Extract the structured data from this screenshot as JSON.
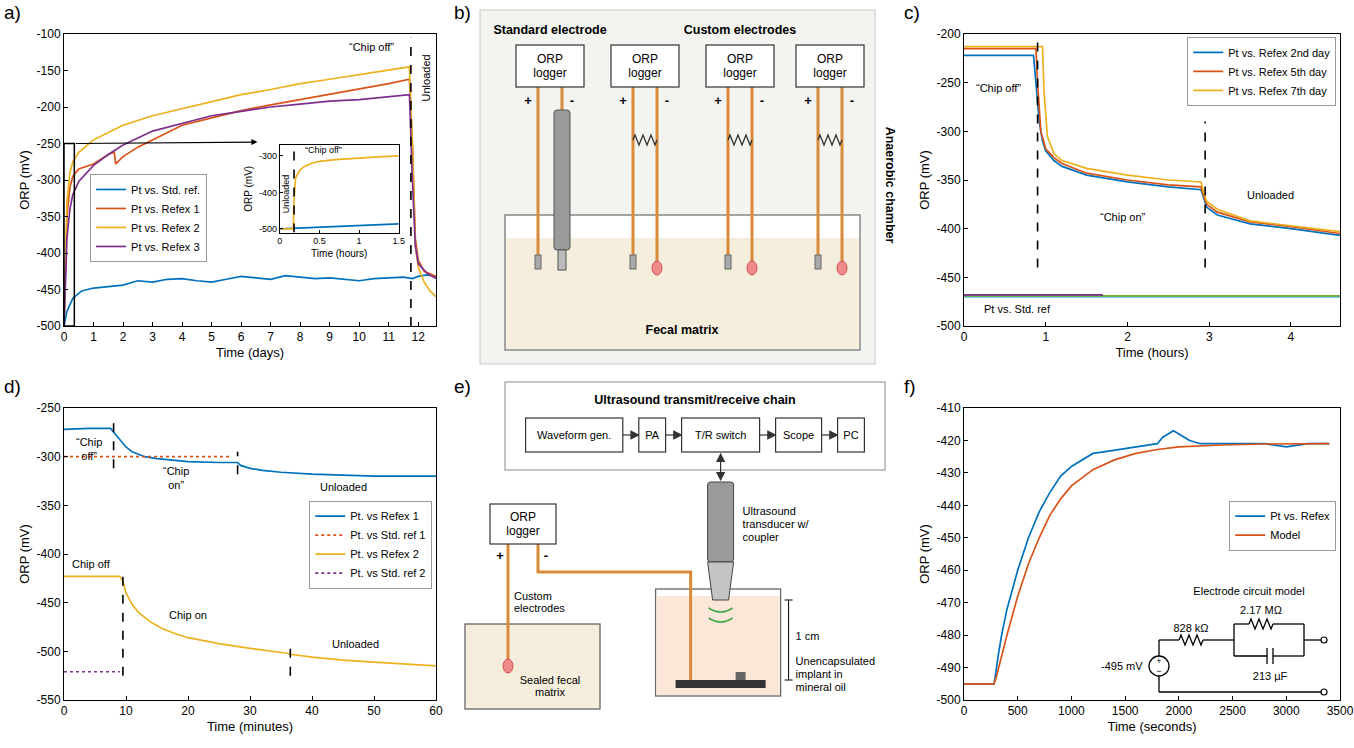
{
  "chart_data": [
    {
      "panel_label": "a)",
      "type": "line",
      "x_label": "Time (days)",
      "y_label": "ORP (mV)",
      "xlim": [
        0,
        12.6
      ],
      "xticks": [
        0,
        1,
        2,
        3,
        4,
        5,
        6,
        7,
        8,
        9,
        10,
        11,
        12
      ],
      "ylim": [
        -500,
        -100
      ],
      "yticks": [
        -500,
        -450,
        -400,
        -350,
        -300,
        -250,
        -200,
        -150,
        -100
      ],
      "grid": false,
      "legend": "left",
      "series": [
        {
          "name": "Pt vs. Std. ref.",
          "color": "#0072BD",
          "x": [
            0,
            0.1,
            0.3,
            0.6,
            1,
            1.5,
            2,
            2.5,
            3,
            3.5,
            4,
            4.5,
            5,
            5.5,
            6,
            6.5,
            7,
            7.5,
            8,
            8.5,
            9,
            9.5,
            10,
            10.5,
            11,
            11.5,
            11.8,
            12,
            12.3,
            12.6
          ],
          "values": [
            -500,
            -480,
            -462,
            -452,
            -448,
            -446,
            -444,
            -438,
            -440,
            -436,
            -435,
            -438,
            -440,
            -436,
            -432,
            -434,
            -436,
            -431,
            -433,
            -435,
            -434,
            -436,
            -438,
            -435,
            -434,
            -433,
            -435,
            -432,
            -430,
            -432
          ]
        },
        {
          "name": "Pt vs. Refex 1",
          "color": "#D95319",
          "x": [
            0,
            0.05,
            0.1,
            0.2,
            0.3,
            0.5,
            1,
            1.5,
            1.7,
            1.75,
            2,
            2.5,
            3,
            3.5,
            4,
            5,
            6,
            7,
            8,
            9,
            10,
            11,
            11.7,
            11.8,
            11.9,
            12,
            12.2,
            12.6
          ],
          "values": [
            -500,
            -420,
            -350,
            -310,
            -295,
            -285,
            -278,
            -265,
            -262,
            -278,
            -268,
            -255,
            -245,
            -235,
            -225,
            -215,
            -205,
            -197,
            -190,
            -182,
            -176,
            -168,
            -162,
            -250,
            -380,
            -410,
            -425,
            -432
          ]
        },
        {
          "name": "Pt vs. Refex 2",
          "color": "#EDB120",
          "x": [
            0,
            0.05,
            0.1,
            0.2,
            0.3,
            0.5,
            1,
            1.5,
            2,
            3,
            4,
            5,
            6,
            7,
            8,
            9,
            10,
            11,
            11.7,
            11.8,
            11.9,
            12,
            12.2,
            12.4,
            12.6
          ],
          "values": [
            -500,
            -400,
            -330,
            -290,
            -275,
            -262,
            -245,
            -235,
            -225,
            -212,
            -202,
            -192,
            -183,
            -176,
            -168,
            -162,
            -156,
            -150,
            -145,
            -250,
            -390,
            -420,
            -440,
            -452,
            -460
          ]
        },
        {
          "name": "Pt vs. Refex 3",
          "color": "#7E2F8E",
          "x": [
            0,
            0.05,
            0.1,
            0.2,
            0.3,
            0.5,
            1,
            1.5,
            2,
            3,
            4,
            5,
            6,
            7,
            8,
            9,
            10,
            11,
            11.7,
            11.8,
            11.9,
            12,
            12.3,
            12.6
          ],
          "values": [
            -500,
            -440,
            -380,
            -340,
            -320,
            -302,
            -280,
            -265,
            -252,
            -233,
            -222,
            -212,
            -206,
            -200,
            -196,
            -192,
            -190,
            -186,
            -183,
            -300,
            -390,
            -415,
            -428,
            -435
          ]
        }
      ],
      "annotations": [
        {
          "text": "“Chip off”",
          "x": 10.4,
          "y": -118
        },
        {
          "text": "Unloaded",
          "x": 12.25,
          "y": -160
        }
      ],
      "vlines": [
        {
          "x": 11.75,
          "y": [
            -500,
            -105
          ]
        }
      ],
      "zoom_box": {
        "x": [
          0,
          0.35
        ],
        "y": [
          -500,
          -250
        ]
      },
      "inset": {
        "type": "line",
        "x_label": "Time (hours)",
        "y_label": "ORP (mV)",
        "xlim": [
          0,
          1.5
        ],
        "xticks": [
          0,
          0.5,
          1,
          1.5
        ],
        "ylim": [
          -510,
          -270
        ],
        "yticks": [
          -500,
          -400,
          -300
        ],
        "series": [
          {
            "name": "Pt vs. Std. ref.",
            "color": "#0072BD",
            "x": [
              0,
              0.2,
              0.4,
              0.6,
              0.8,
              1,
              1.2,
              1.4,
              1.5
            ],
            "values": [
              -500,
              -498,
              -497,
              -495,
              -493,
              -491,
              -489,
              -487,
              -486
            ]
          },
          {
            "name": "Pt vs. Refex 2",
            "color": "#EDB120",
            "x": [
              0,
              0.17,
              0.18,
              0.2,
              0.25,
              0.3,
              0.4,
              0.5,
              0.7,
              1,
              1.3,
              1.5
            ],
            "values": [
              -500,
              -500,
              -420,
              -360,
              -340,
              -330,
              -320,
              -315,
              -310,
              -305,
              -302,
              -300
            ]
          }
        ],
        "annotations": [
          {
            "text": "“Chip off”",
            "x": 0.55,
            "y": -285
          },
          {
            "text": "Unloaded",
            "x": 0.08,
            "y": -405
          }
        ],
        "vlines": [
          {
            "x": 0.18,
            "y": [
              -510,
              -270
            ]
          }
        ]
      }
    },
    {
      "panel_label": "c)",
      "type": "line",
      "x_label": "Time (hours)",
      "y_label": "ORP (mV)",
      "xlim": [
        0,
        4.6
      ],
      "xticks": [
        0,
        1,
        2,
        3,
        4
      ],
      "ylim": [
        -500,
        -200
      ],
      "yticks": [
        -500,
        -450,
        -400,
        -350,
        -300,
        -250,
        -200
      ],
      "grid": false,
      "legend": "upper right",
      "series": [
        {
          "name": "Pt vs. Refex 2nd day",
          "color": "#0072BD",
          "x": [
            0,
            0.5,
            0.85,
            0.88,
            0.92,
            0.96,
            1.0,
            1.1,
            1.2,
            1.5,
            2,
            2.5,
            2.9,
            2.93,
            2.97,
            3.1,
            3.5,
            4,
            4.6
          ],
          "values": [
            -222,
            -222,
            -222,
            -250,
            -290,
            -310,
            -320,
            -330,
            -336,
            -345,
            -352,
            -357,
            -360,
            -368,
            -378,
            -386,
            -395,
            -400,
            -407
          ]
        },
        {
          "name": "Pt vs. Refex 5th day",
          "color": "#D95319",
          "x": [
            0,
            0.5,
            0.88,
            0.9,
            0.94,
            1.0,
            1.1,
            1.2,
            1.5,
            2,
            2.5,
            2.9,
            2.93,
            2.97,
            3.1,
            3.5,
            4,
            4.6
          ],
          "values": [
            -215,
            -215,
            -215,
            -250,
            -300,
            -318,
            -327,
            -333,
            -343,
            -350,
            -355,
            -357,
            -366,
            -375,
            -383,
            -393,
            -398,
            -405
          ]
        },
        {
          "name": "Pt vs. Refex 7th day",
          "color": "#EDB120",
          "x": [
            0,
            0.5,
            0.96,
            0.98,
            1.02,
            1.1,
            1.2,
            1.5,
            2,
            2.5,
            2.9,
            2.93,
            2.97,
            3.1,
            3.5,
            4,
            4.6
          ],
          "values": [
            -213,
            -213,
            -213,
            -260,
            -305,
            -323,
            -330,
            -338,
            -345,
            -350,
            -352,
            -362,
            -372,
            -380,
            -392,
            -397,
            -403
          ]
        },
        {
          "color": "#4DBEEE",
          "x": [
            0,
            4.6
          ],
          "values": [
            -470,
            -470
          ]
        },
        {
          "color": "#77AC30",
          "x": [
            0,
            4.6
          ],
          "values": [
            -469,
            -469
          ]
        },
        {
          "color": "#7E2F8E",
          "x": [
            0,
            1.7
          ],
          "values": [
            -468,
            -468
          ]
        }
      ],
      "annotations": [
        {
          "text": "“Chip off”",
          "x": 0.42,
          "y": -255
        },
        {
          "text": "“Chip on”",
          "x": 1.95,
          "y": -388
        },
        {
          "text": "Unloaded",
          "x": 3.75,
          "y": -365
        },
        {
          "text": "Pt vs. Std. ref",
          "x": 0.65,
          "y": -483
        }
      ],
      "vlines": [
        {
          "x": 0.9,
          "y": [
            -440,
            -205
          ]
        },
        {
          "x": 2.95,
          "y": [
            -440,
            -290
          ]
        }
      ]
    },
    {
      "panel_label": "d)",
      "type": "line",
      "x_label": "Time (minutes)",
      "y_label": "ORP (mV)",
      "xlim": [
        0,
        60
      ],
      "xticks": [
        0,
        10,
        20,
        30,
        40,
        50,
        60
      ],
      "ylim": [
        -550,
        -250
      ],
      "yticks": [
        -550,
        -500,
        -450,
        -400,
        -350,
        -300,
        -250
      ],
      "grid": false,
      "legend": "right",
      "series": [
        {
          "name": "Pt. vs Refex 1",
          "color": "#0072BD",
          "line_style": "solid",
          "x": [
            0,
            4,
            7.5,
            8,
            9,
            10,
            11,
            13,
            15,
            17,
            20,
            25,
            28,
            28.5,
            30,
            32,
            35,
            40,
            45,
            50,
            55,
            60
          ],
          "values": [
            -272,
            -271,
            -271,
            -275,
            -283,
            -290,
            -295,
            -300,
            -302,
            -303,
            -305,
            -306,
            -306,
            -309,
            -312,
            -314,
            -316,
            -318,
            -319,
            -320,
            -320,
            -320
          ]
        },
        {
          "name": "Pt. vs Std. ref 1",
          "color": "#D95319",
          "line_style": "dotted",
          "x": [
            0,
            27
          ],
          "values": [
            -300,
            -300
          ]
        },
        {
          "name": "Pt. vs Refex 2",
          "color": "#EDB120",
          "line_style": "solid",
          "x": [
            0,
            9,
            9.5,
            10,
            11,
            12,
            14,
            16,
            18,
            20,
            25,
            30,
            36,
            36.5,
            40,
            45,
            50,
            55,
            60
          ],
          "values": [
            -423,
            -423,
            -428,
            -440,
            -452,
            -460,
            -470,
            -477,
            -482,
            -486,
            -492,
            -497,
            -502,
            -503,
            -506,
            -509,
            -511,
            -513,
            -515
          ]
        },
        {
          "name": "Pt. vs Std. ref 2",
          "color": "#7E2F8E",
          "line_style": "dotted",
          "x": [
            0,
            9
          ],
          "values": [
            -521,
            -521
          ]
        }
      ],
      "annotations": [
        {
          "text": "“Chip off”",
          "x": 4,
          "y": -292
        },
        {
          "text": "“Chip on”",
          "x": 18,
          "y": -322
        },
        {
          "text": "Unloaded",
          "x": 45,
          "y": -331
        },
        {
          "text": "Chip off",
          "x": 4.5,
          "y": -410
        },
        {
          "text": "Chip on",
          "x": 20,
          "y": -463
        },
        {
          "text": "Unloaded",
          "x": 47,
          "y": -492
        }
      ],
      "vlines": [
        {
          "x": 8,
          "y": [
            -312,
            -265
          ]
        },
        {
          "x": 28,
          "y": [
            -318,
            -295
          ]
        },
        {
          "x": 9.5,
          "y": [
            -525,
            -415
          ]
        },
        {
          "x": 36.5,
          "y": [
            -525,
            -490
          ]
        }
      ]
    },
    {
      "panel_label": "f)",
      "type": "line",
      "x_label": "Time (seconds)",
      "y_label": "ORP (mV)",
      "xlim": [
        0,
        3500
      ],
      "xticks": [
        0,
        500,
        1000,
        1500,
        2000,
        2500,
        3000,
        3500
      ],
      "ylim": [
        -500,
        -410
      ],
      "yticks": [
        -500,
        -490,
        -480,
        -470,
        -460,
        -450,
        -440,
        -430,
        -420,
        -410
      ],
      "grid": false,
      "legend": "right",
      "series": [
        {
          "name": "Pt vs. Refex",
          "color": "#0072BD",
          "x": [
            0,
            100,
            200,
            280,
            290,
            300,
            320,
            350,
            400,
            450,
            500,
            600,
            700,
            800,
            900,
            1000,
            1100,
            1200,
            1300,
            1400,
            1500,
            1600,
            1700,
            1800,
            1850,
            1900,
            1950,
            2000,
            2050,
            2100,
            2200,
            2400,
            2600,
            2800,
            3000,
            3200,
            3400
          ],
          "values": [
            -495,
            -495,
            -495,
            -495,
            -493,
            -490,
            -486,
            -480,
            -472,
            -466,
            -460,
            -450,
            -442,
            -436,
            -431,
            -428,
            -426,
            -424,
            -423.5,
            -423,
            -422.5,
            -422,
            -421.5,
            -421,
            -419,
            -418,
            -417,
            -418,
            -419,
            -420,
            -421,
            -421,
            -421,
            -421,
            -422,
            -421,
            -421
          ]
        },
        {
          "name": "Model",
          "color": "#D95319",
          "x": [
            0,
            280,
            300,
            350,
            400,
            500,
            600,
            700,
            800,
            900,
            1000,
            1200,
            1400,
            1600,
            1800,
            2000,
            2400,
            2800,
            3400
          ],
          "values": [
            -495,
            -495,
            -493,
            -486,
            -480,
            -468,
            -458,
            -450,
            -443,
            -438,
            -434,
            -429,
            -426,
            -424,
            -422.8,
            -422,
            -421.4,
            -421.1,
            -421
          ]
        }
      ],
      "circuit": {
        "title": "Electrode circuit model",
        "source": "-495 mV",
        "source_signs": [
          "+",
          "−"
        ],
        "r_series": "828 kΩ",
        "r_parallel": "2.17 MΩ",
        "capacitor": "213 µF"
      }
    }
  ],
  "diagrams": {
    "b": {
      "panel_label": "b)",
      "standard_title": "Standard electrode",
      "custom_title": "Custom electrodes",
      "loggers": [
        "ORP logger",
        "ORP logger",
        "ORP logger",
        "ORP logger"
      ],
      "plus": "+",
      "minus": "-",
      "matrix": "Fecal matrix",
      "chamber": "Anaerobic chamber"
    },
    "e": {
      "panel_label": "e)",
      "chain_title": "Ultrasound transmit/receive chain",
      "chain": [
        "Waveform gen.",
        "PA",
        "T/R switch",
        "Scope",
        "PC"
      ],
      "logger": "ORP logger",
      "plus": "+",
      "minus": "-",
      "electrodes": "Custom electrodes",
      "matrix": "Sealed fecal matrix",
      "transducer": "Ultrasound transducer w/ coupler",
      "distance": "1 cm",
      "implant": "Unencapsulated implant in mineral oil"
    }
  }
}
